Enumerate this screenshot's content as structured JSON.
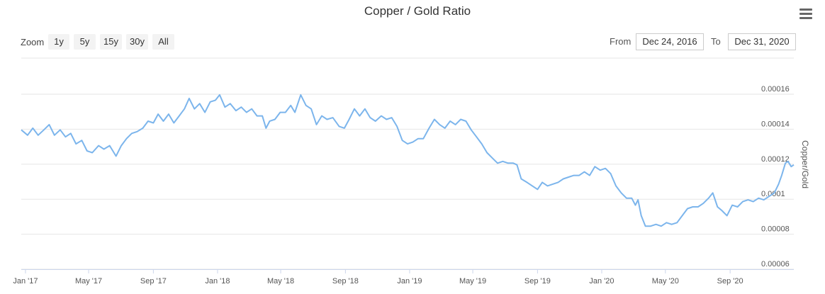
{
  "chart_data": {
    "type": "line",
    "title": "Copper / Gold Ratio",
    "ylabel": "Copper/Gold",
    "ylim": [
      6e-05,
      0.00016
    ],
    "y_ticks": [
      "0.00006",
      "0.00008",
      "0.0001",
      "0.00012",
      "0.00014",
      "0.00016"
    ],
    "y_tick_values": [
      6e-05,
      8e-05,
      0.0001,
      0.00012,
      0.00014,
      0.00016
    ],
    "x_range": [
      "2016-12-24",
      "2020-12-31"
    ],
    "x_ticks": [
      {
        "label": "Jan '17",
        "date": "2017-01-01"
      },
      {
        "label": "May '17",
        "date": "2017-05-01"
      },
      {
        "label": "Sep '17",
        "date": "2017-09-01"
      },
      {
        "label": "Jan '18",
        "date": "2018-01-01"
      },
      {
        "label": "May '18",
        "date": "2018-05-01"
      },
      {
        "label": "Sep '18",
        "date": "2018-09-01"
      },
      {
        "label": "Jan '19",
        "date": "2019-01-01"
      },
      {
        "label": "May '19",
        "date": "2019-05-01"
      },
      {
        "label": "Sep '19",
        "date": "2019-09-01"
      },
      {
        "label": "Jan '20",
        "date": "2020-01-01"
      },
      {
        "label": "May '20",
        "date": "2020-05-01"
      },
      {
        "label": "Sep '20",
        "date": "2020-09-01"
      }
    ],
    "grid": true,
    "line_color": "#7cb5ec",
    "series": [
      {
        "values": [
          [
            "2016-12-24",
            0.000138
          ],
          [
            "2017-01-05",
            0.000135
          ],
          [
            "2017-01-15",
            0.000139
          ],
          [
            "2017-01-25",
            0.000135
          ],
          [
            "2017-02-05",
            0.000138
          ],
          [
            "2017-02-15",
            0.000141
          ],
          [
            "2017-02-25",
            0.000135
          ],
          [
            "2017-03-08",
            0.000138
          ],
          [
            "2017-03-18",
            0.000134
          ],
          [
            "2017-03-28",
            0.000136
          ],
          [
            "2017-04-07",
            0.00013
          ],
          [
            "2017-04-18",
            0.000132
          ],
          [
            "2017-04-28",
            0.000126
          ],
          [
            "2017-05-08",
            0.000125
          ],
          [
            "2017-05-20",
            0.000129
          ],
          [
            "2017-05-30",
            0.000127
          ],
          [
            "2017-06-10",
            0.000129
          ],
          [
            "2017-06-22",
            0.000123
          ],
          [
            "2017-07-02",
            0.000129
          ],
          [
            "2017-07-12",
            0.000133
          ],
          [
            "2017-07-22",
            0.000136
          ],
          [
            "2017-08-01",
            0.000137
          ],
          [
            "2017-08-12",
            0.000139
          ],
          [
            "2017-08-22",
            0.000143
          ],
          [
            "2017-09-01",
            0.000142
          ],
          [
            "2017-09-10",
            0.000147
          ],
          [
            "2017-09-20",
            0.000143
          ],
          [
            "2017-09-30",
            0.000147
          ],
          [
            "2017-10-10",
            0.000142
          ],
          [
            "2017-10-20",
            0.000146
          ],
          [
            "2017-10-30",
            0.00015
          ],
          [
            "2017-11-08",
            0.000156
          ],
          [
            "2017-11-18",
            0.00015
          ],
          [
            "2017-11-28",
            0.000153
          ],
          [
            "2017-12-08",
            0.000148
          ],
          [
            "2017-12-18",
            0.000154
          ],
          [
            "2017-12-28",
            0.000155
          ],
          [
            "2018-01-05",
            0.000158
          ],
          [
            "2018-01-15",
            0.000151
          ],
          [
            "2018-01-25",
            0.000153
          ],
          [
            "2018-02-05",
            0.000149
          ],
          [
            "2018-02-15",
            0.000151
          ],
          [
            "2018-02-25",
            0.000148
          ],
          [
            "2018-03-07",
            0.00015
          ],
          [
            "2018-03-17",
            0.000146
          ],
          [
            "2018-03-27",
            0.000146
          ],
          [
            "2018-04-03",
            0.000139
          ],
          [
            "2018-04-10",
            0.000143
          ],
          [
            "2018-04-20",
            0.000144
          ],
          [
            "2018-04-30",
            0.000148
          ],
          [
            "2018-05-10",
            0.000148
          ],
          [
            "2018-05-20",
            0.000152
          ],
          [
            "2018-05-28",
            0.000148
          ],
          [
            "2018-06-08",
            0.000158
          ],
          [
            "2018-06-18",
            0.000152
          ],
          [
            "2018-06-28",
            0.00015
          ],
          [
            "2018-07-08",
            0.000141
          ],
          [
            "2018-07-18",
            0.000146
          ],
          [
            "2018-07-28",
            0.000144
          ],
          [
            "2018-08-08",
            0.000145
          ],
          [
            "2018-08-20",
            0.00014
          ],
          [
            "2018-08-30",
            0.000139
          ],
          [
            "2018-09-08",
            0.000144
          ],
          [
            "2018-09-18",
            0.00015
          ],
          [
            "2018-09-28",
            0.000146
          ],
          [
            "2018-10-08",
            0.00015
          ],
          [
            "2018-10-18",
            0.000145
          ],
          [
            "2018-10-28",
            0.000143
          ],
          [
            "2018-11-08",
            0.000146
          ],
          [
            "2018-11-18",
            0.000144
          ],
          [
            "2018-11-28",
            0.000145
          ],
          [
            "2018-12-08",
            0.00014
          ],
          [
            "2018-12-18",
            0.000132
          ],
          [
            "2018-12-28",
            0.00013
          ],
          [
            "2019-01-07",
            0.000131
          ],
          [
            "2019-01-17",
            0.000133
          ],
          [
            "2019-01-27",
            0.000133
          ],
          [
            "2019-02-07",
            0.000139
          ],
          [
            "2019-02-17",
            0.000144
          ],
          [
            "2019-02-27",
            0.000141
          ],
          [
            "2019-03-09",
            0.000139
          ],
          [
            "2019-03-19",
            0.000143
          ],
          [
            "2019-03-29",
            0.000141
          ],
          [
            "2019-04-08",
            0.000144
          ],
          [
            "2019-04-18",
            0.000143
          ],
          [
            "2019-04-28",
            0.000138
          ],
          [
            "2019-05-08",
            0.000134
          ],
          [
            "2019-05-18",
            0.00013
          ],
          [
            "2019-05-28",
            0.000125
          ],
          [
            "2019-06-07",
            0.000122
          ],
          [
            "2019-06-17",
            0.000119
          ],
          [
            "2019-06-27",
            0.00012
          ],
          [
            "2019-07-07",
            0.000119
          ],
          [
            "2019-07-17",
            0.000119
          ],
          [
            "2019-07-24",
            0.000118
          ],
          [
            "2019-08-01",
            0.00011
          ],
          [
            "2019-08-12",
            0.000108
          ],
          [
            "2019-08-22",
            0.000106
          ],
          [
            "2019-09-01",
            0.000104
          ],
          [
            "2019-09-10",
            0.000108
          ],
          [
            "2019-09-20",
            0.000106
          ],
          [
            "2019-09-30",
            0.000107
          ],
          [
            "2019-10-10",
            0.000108
          ],
          [
            "2019-10-20",
            0.00011
          ],
          [
            "2019-10-30",
            0.000111
          ],
          [
            "2019-11-09",
            0.000112
          ],
          [
            "2019-11-19",
            0.000112
          ],
          [
            "2019-11-29",
            0.000114
          ],
          [
            "2019-12-09",
            0.000112
          ],
          [
            "2019-12-19",
            0.000117
          ],
          [
            "2019-12-29",
            0.000115
          ],
          [
            "2020-01-08",
            0.000116
          ],
          [
            "2020-01-18",
            0.000113
          ],
          [
            "2020-01-28",
            0.000106
          ],
          [
            "2020-02-07",
            0.000102
          ],
          [
            "2020-02-17",
            9.9e-05
          ],
          [
            "2020-02-27",
            9.9e-05
          ],
          [
            "2020-03-05",
            9.5e-05
          ],
          [
            "2020-03-10",
            9.8e-05
          ],
          [
            "2020-03-16",
            8.9e-05
          ],
          [
            "2020-03-24",
            8.3e-05
          ],
          [
            "2020-04-03",
            8.3e-05
          ],
          [
            "2020-04-13",
            8.4e-05
          ],
          [
            "2020-04-23",
            8.3e-05
          ],
          [
            "2020-05-03",
            8.5e-05
          ],
          [
            "2020-05-13",
            8.4e-05
          ],
          [
            "2020-05-23",
            8.5e-05
          ],
          [
            "2020-06-02",
            8.9e-05
          ],
          [
            "2020-06-12",
            9.3e-05
          ],
          [
            "2020-06-22",
            9.4e-05
          ],
          [
            "2020-07-02",
            9.4e-05
          ],
          [
            "2020-07-12",
            9.6e-05
          ],
          [
            "2020-07-22",
            9.9e-05
          ],
          [
            "2020-07-30",
            0.000102
          ],
          [
            "2020-08-08",
            9.4e-05
          ],
          [
            "2020-08-16",
            9.2e-05
          ],
          [
            "2020-08-26",
            8.9e-05
          ],
          [
            "2020-09-05",
            9.5e-05
          ],
          [
            "2020-09-15",
            9.4e-05
          ],
          [
            "2020-09-25",
            9.7e-05
          ],
          [
            "2020-10-05",
            9.8e-05
          ],
          [
            "2020-10-15",
            9.7e-05
          ],
          [
            "2020-10-25",
            9.9e-05
          ],
          [
            "2020-11-04",
            9.8e-05
          ],
          [
            "2020-11-14",
            0.0001
          ],
          [
            "2020-11-24",
            0.000102
          ],
          [
            "2020-12-02",
            0.000107
          ],
          [
            "2020-12-08",
            0.000112
          ],
          [
            "2020-12-15",
            0.000119
          ],
          [
            "2020-12-20",
            0.00012
          ],
          [
            "2020-12-26",
            0.000117
          ],
          [
            "2020-12-31",
            0.000118
          ]
        ]
      }
    ]
  },
  "toolbar": {
    "zoom_label": "Zoom",
    "zoom_buttons": [
      "1y",
      "5y",
      "15y",
      "30y",
      "All"
    ],
    "from_label": "From",
    "from_value": "Dec 24, 2016",
    "to_label": "To",
    "to_value": "Dec 31, 2020"
  },
  "icons": {
    "menu": "hamburger-menu-icon"
  }
}
